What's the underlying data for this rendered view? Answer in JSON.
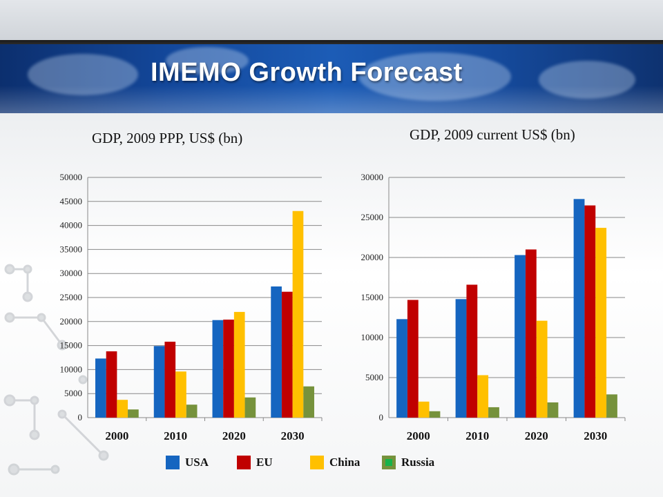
{
  "slide": {
    "title": "IMEMO Growth Forecast"
  },
  "colors": {
    "USA": "#1565c0",
    "EU": "#c00000",
    "China": "#ffc000",
    "Russia": "#76923c",
    "grid": "#888888",
    "banner": "#13479a"
  },
  "legend": [
    {
      "name": "USA",
      "color": "#1565c0"
    },
    {
      "name": "EU",
      "color": "#c00000"
    },
    {
      "name": "China",
      "color": "#ffc000"
    },
    {
      "name": "Russia",
      "color": "#76923c",
      "swatch_inner": "#17b34a"
    }
  ],
  "chart_data": [
    {
      "type": "bar",
      "title": "GDP, 2009 PPP, US$ (bn)",
      "categories": [
        "2000",
        "2010",
        "2020",
        "2030"
      ],
      "ylim": [
        0,
        50000
      ],
      "yticks": [
        0,
        5000,
        10000,
        15000,
        20000,
        25000,
        30000,
        35000,
        40000,
        45000,
        50000
      ],
      "grid": true,
      "series": [
        {
          "name": "USA",
          "values": [
            12300,
            14900,
            20300,
            27300
          ]
        },
        {
          "name": "EU",
          "values": [
            13800,
            15800,
            20400,
            26200
          ]
        },
        {
          "name": "China",
          "values": [
            3700,
            9600,
            22000,
            43000
          ]
        },
        {
          "name": "Russia",
          "values": [
            1700,
            2700,
            4200,
            6500
          ]
        }
      ]
    },
    {
      "type": "bar",
      "title": "GDP, 2009 current US$ (bn)",
      "categories": [
        "2000",
        "2010",
        "2020",
        "2030"
      ],
      "ylim": [
        0,
        30000
      ],
      "yticks": [
        0,
        5000,
        10000,
        15000,
        20000,
        25000,
        30000
      ],
      "grid": true,
      "series": [
        {
          "name": "USA",
          "values": [
            12300,
            14800,
            20300,
            27300
          ]
        },
        {
          "name": "EU",
          "values": [
            14700,
            16600,
            21000,
            26500
          ]
        },
        {
          "name": "China",
          "values": [
            2000,
            5300,
            12100,
            23700
          ]
        },
        {
          "name": "Russia",
          "values": [
            800,
            1300,
            1900,
            2900
          ]
        }
      ]
    }
  ]
}
